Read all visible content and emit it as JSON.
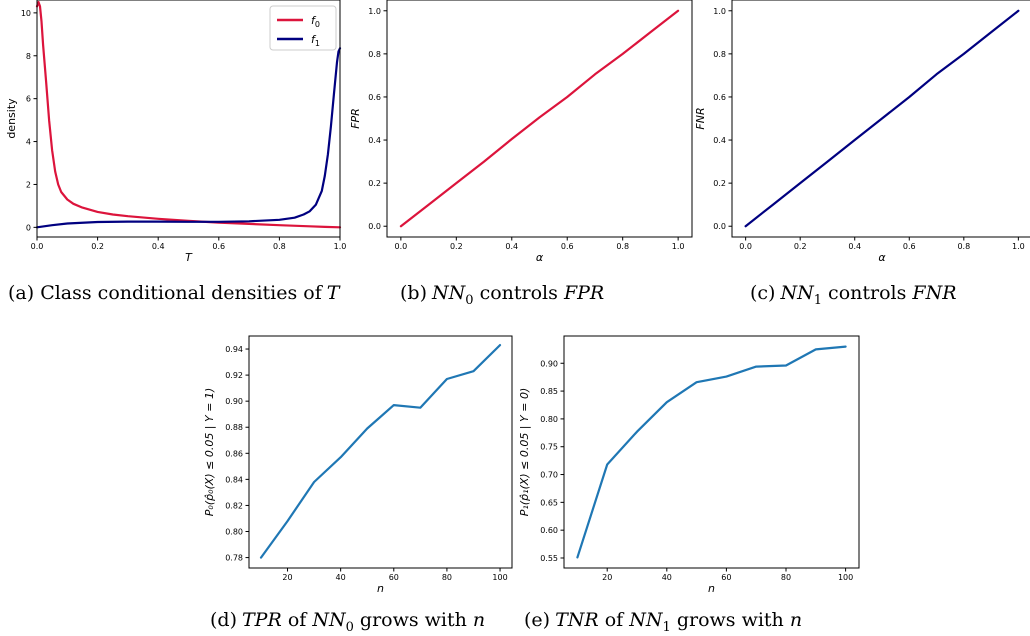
{
  "colors": {
    "red": "#dc143c",
    "navy": "#000080",
    "blue": "#1f77b4",
    "axis": "#000000"
  },
  "charts": [
    {
      "id": "a",
      "caption": {
        "prefix": "(a) Class conditional densities of",
        "math": "T"
      },
      "chart_data": {
        "type": "line",
        "xlabel": "T",
        "ylabel": "density",
        "xlim": [
          0,
          1
        ],
        "ylim": [
          -0.45,
          10.6
        ],
        "xticks": [
          0.0,
          0.2,
          0.4,
          0.6,
          0.8,
          1.0
        ],
        "xticklabels": [
          "0.0",
          "0.2",
          "0.4",
          "0.6",
          "0.8",
          "1.0"
        ],
        "yticks": [
          0,
          2,
          4,
          6,
          8,
          10
        ],
        "yticklabels": [
          "0",
          "2",
          "4",
          "6",
          "8",
          "10"
        ],
        "legend": {
          "placement": "top-right"
        },
        "series": [
          {
            "name": "f0",
            "label_base": "f",
            "label_sub": "0",
            "color": "#dc143c",
            "x": [
              0.0,
              0.005,
              0.01,
              0.015,
              0.02,
              0.03,
              0.04,
              0.05,
              0.06,
              0.07,
              0.08,
              0.1,
              0.12,
              0.15,
              0.2,
              0.25,
              0.3,
              0.4,
              0.5,
              0.6,
              0.7,
              0.8,
              0.9,
              0.95,
              1.0
            ],
            "y": [
              10.3,
              10.5,
              10.3,
              9.6,
              8.5,
              6.8,
              5.0,
              3.6,
              2.6,
              2.0,
              1.65,
              1.3,
              1.1,
              0.92,
              0.72,
              0.6,
              0.52,
              0.4,
              0.3,
              0.22,
              0.16,
              0.1,
              0.05,
              0.02,
              0.0
            ]
          },
          {
            "name": "f1",
            "label_base": "f",
            "label_sub": "1",
            "color": "#000080",
            "x": [
              0.0,
              0.05,
              0.1,
              0.2,
              0.3,
              0.4,
              0.5,
              0.6,
              0.7,
              0.8,
              0.85,
              0.88,
              0.9,
              0.92,
              0.94,
              0.95,
              0.96,
              0.97,
              0.98,
              0.99,
              0.995,
              1.0
            ],
            "y": [
              0.0,
              0.1,
              0.18,
              0.25,
              0.27,
              0.27,
              0.26,
              0.26,
              0.28,
              0.35,
              0.45,
              0.6,
              0.75,
              1.05,
              1.7,
              2.4,
              3.4,
              4.7,
              6.2,
              7.7,
              8.2,
              8.35
            ]
          }
        ]
      }
    },
    {
      "id": "b",
      "caption": {
        "prefix": "(b)",
        "math_base": "NN",
        "math_sub": "0",
        "mid": "controls",
        "math_tail": "FPR"
      },
      "chart_data": {
        "type": "line",
        "xlabel": "α",
        "ylabel": "FPR",
        "xlim": [
          -0.05,
          1.05
        ],
        "ylim": [
          -0.05,
          1.05
        ],
        "xticks": [
          0.0,
          0.2,
          0.4,
          0.6,
          0.8,
          1.0
        ],
        "xticklabels": [
          "0.0",
          "0.2",
          "0.4",
          "0.6",
          "0.8",
          "1.0"
        ],
        "yticks": [
          0.0,
          0.2,
          0.4,
          0.6,
          0.8,
          1.0
        ],
        "yticklabels": [
          "0.0",
          "0.2",
          "0.4",
          "0.6",
          "0.8",
          "1.0"
        ],
        "series": [
          {
            "name": "",
            "color": "#dc143c",
            "x": [
              0.0,
              0.1,
              0.2,
              0.3,
              0.4,
              0.5,
              0.6,
              0.7,
              0.8,
              0.9,
              1.0
            ],
            "y": [
              0.0,
              0.1,
              0.2,
              0.3,
              0.405,
              0.505,
              0.6,
              0.705,
              0.8,
              0.9,
              1.0
            ]
          }
        ]
      }
    },
    {
      "id": "c",
      "caption": {
        "prefix": "(c)",
        "math_base": "NN",
        "math_sub": "1",
        "mid": "controls",
        "math_tail": "FNR"
      },
      "chart_data": {
        "type": "line",
        "xlabel": "α",
        "ylabel": "FNR",
        "xlim": [
          -0.05,
          1.05
        ],
        "ylim": [
          -0.05,
          1.05
        ],
        "xticks": [
          0.0,
          0.2,
          0.4,
          0.6,
          0.8,
          1.0
        ],
        "xticklabels": [
          "0.0",
          "0.2",
          "0.4",
          "0.6",
          "0.8",
          "1.0"
        ],
        "yticks": [
          0.0,
          0.2,
          0.4,
          0.6,
          0.8,
          1.0
        ],
        "yticklabels": [
          "0.0",
          "0.2",
          "0.4",
          "0.6",
          "0.8",
          "1.0"
        ],
        "series": [
          {
            "name": "",
            "color": "#000080",
            "x": [
              0.0,
              0.1,
              0.2,
              0.3,
              0.4,
              0.5,
              0.6,
              0.7,
              0.8,
              0.9,
              1.0
            ],
            "y": [
              0.0,
              0.1,
              0.2,
              0.3,
              0.4,
              0.5,
              0.6,
              0.705,
              0.8,
              0.9,
              1.0
            ]
          }
        ]
      }
    },
    {
      "id": "d",
      "caption": {
        "prefix": "(d)",
        "math_tail0": "TPR",
        "mid0": "of",
        "math_base": "NN",
        "math_sub": "0",
        "mid": "grows with",
        "math_tail": "n"
      },
      "chart_data": {
        "type": "line",
        "xlabel": "n",
        "ylabel": "P₀(p̂₀(X) ≤ 0.05 | Y = 1)",
        "xlim": [
          5.5,
          104.5
        ],
        "ylim": [
          0.772,
          0.95
        ],
        "xticks": [
          20,
          40,
          60,
          80,
          100
        ],
        "xticklabels": [
          "20",
          "40",
          "60",
          "80",
          "100"
        ],
        "yticks": [
          0.78,
          0.8,
          0.82,
          0.84,
          0.86,
          0.88,
          0.9,
          0.92,
          0.94
        ],
        "yticklabels": [
          "0.78",
          "0.80",
          "0.82",
          "0.84",
          "0.86",
          "0.88",
          "0.90",
          "0.92",
          "0.94"
        ],
        "series": [
          {
            "name": "",
            "color": "#1f77b4",
            "x": [
              10,
              20,
              30,
              40,
              50,
              60,
              70,
              80,
              90,
              100
            ],
            "y": [
              0.78,
              0.808,
              0.838,
              0.857,
              0.879,
              0.897,
              0.895,
              0.917,
              0.923,
              0.943
            ]
          }
        ]
      }
    },
    {
      "id": "e",
      "caption": {
        "prefix": "(e)",
        "math_tail0": "TNR",
        "mid0": "of",
        "math_base": "NN",
        "math_sub": "1",
        "mid": "grows with",
        "math_tail": "n"
      },
      "chart_data": {
        "type": "line",
        "xlabel": "n",
        "ylabel": "P₁(p̂₁(X) ≤ 0.05 | Y = 0)",
        "xlim": [
          5.5,
          104.5
        ],
        "ylim": [
          0.532,
          0.949
        ],
        "xticks": [
          20,
          40,
          60,
          80,
          100
        ],
        "xticklabels": [
          "20",
          "40",
          "60",
          "80",
          "100"
        ],
        "yticks": [
          0.55,
          0.6,
          0.65,
          0.7,
          0.75,
          0.8,
          0.85,
          0.9
        ],
        "yticklabels": [
          "0.55",
          "0.60",
          "0.65",
          "0.70",
          "0.75",
          "0.80",
          "0.85",
          "0.90"
        ],
        "series": [
          {
            "name": "",
            "color": "#1f77b4",
            "x": [
              10,
              20,
              30,
              40,
              50,
              60,
              70,
              80,
              90,
              100
            ],
            "y": [
              0.551,
              0.718,
              0.777,
              0.83,
              0.866,
              0.876,
              0.894,
              0.896,
              0.925,
              0.93
            ]
          }
        ]
      }
    }
  ]
}
